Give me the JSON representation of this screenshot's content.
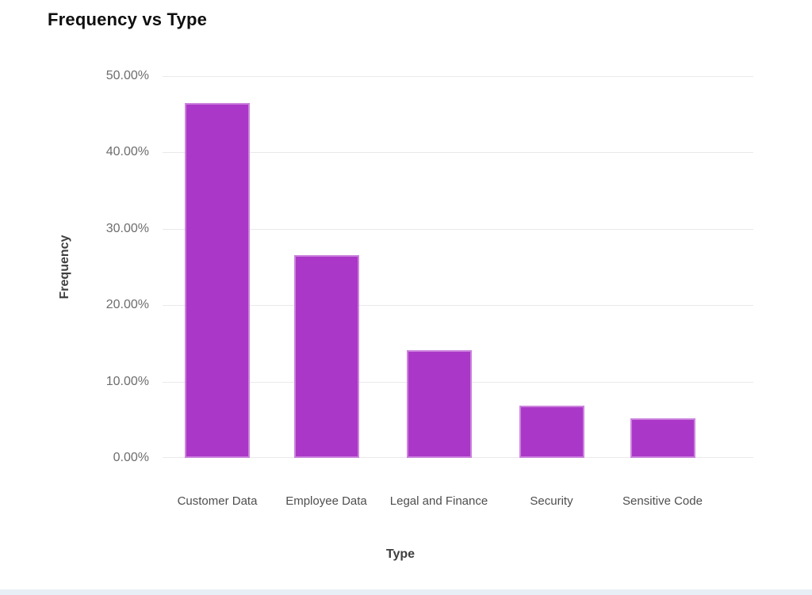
{
  "page": {
    "title": "Frequency vs Type"
  },
  "chart_data": {
    "type": "bar",
    "title": "Frequency vs Type",
    "xlabel": "Type",
    "ylabel": "Frequency",
    "categories": [
      "Customer Data",
      "Employee Data",
      "Legal and Finance",
      "Security",
      "Sensitive Code"
    ],
    "values": [
      46.5,
      26.6,
      14.1,
      6.9,
      5.2
    ],
    "value_unit": "percent",
    "ylim": [
      0,
      50
    ],
    "yticks": [
      {
        "value": 50,
        "label": "50.00%"
      },
      {
        "value": 40,
        "label": "40.00%"
      },
      {
        "value": 30,
        "label": "30.00%"
      },
      {
        "value": 20,
        "label": "20.00%"
      },
      {
        "value": 10,
        "label": "10.00%"
      },
      {
        "value": 0,
        "label": "0.00%"
      }
    ],
    "grid": true,
    "legend_position": "none",
    "bar_color": "#ab37c8",
    "gridline_color": "#e9e9e9",
    "title_color": "#0f0f0f",
    "tick_label_color": "#6d6d6d",
    "category_label_color": "#4e4e4e",
    "axis_title_color": "#3e3e3e",
    "bottom_strip_color": "#e8eef5"
  }
}
